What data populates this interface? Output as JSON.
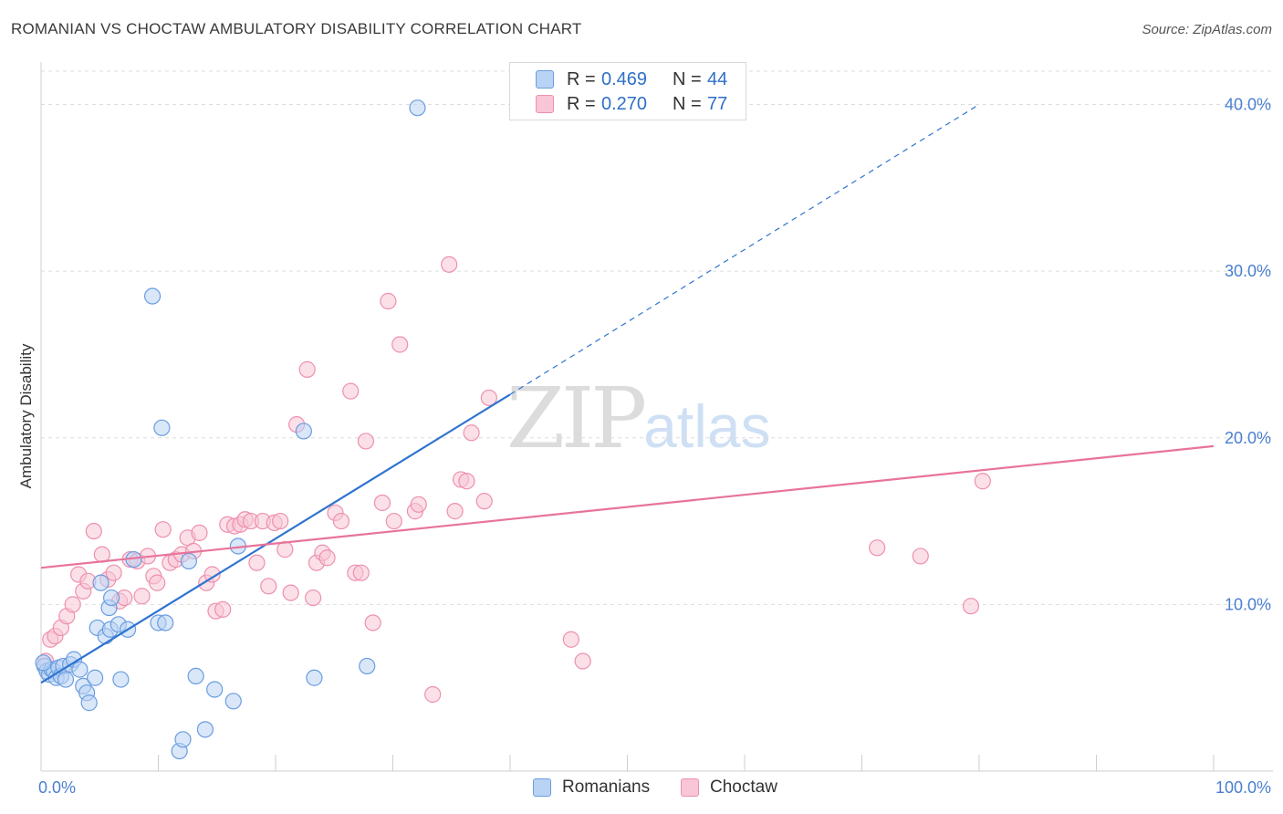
{
  "title": "ROMANIAN VS CHOCTAW AMBULATORY DISABILITY CORRELATION CHART",
  "source": "Source: ZipAtlas.com",
  "watermark": {
    "main": "ZIP",
    "sub": "atlas"
  },
  "legend": {
    "rows": [
      {
        "r_label": "R =",
        "r_value": "0.469",
        "n_label": "N =",
        "n_value": "44"
      },
      {
        "r_label": "R =",
        "r_value": "0.270",
        "n_label": "N =",
        "n_value": "77"
      }
    ]
  },
  "bottom_legend": {
    "series1": "Romanians",
    "series2": "Choctaw"
  },
  "colors": {
    "blue_fill": "#b9d3f4",
    "blue_stroke": "#6a9de0",
    "blue_line": "#2f74d0",
    "pink_fill": "#f8c6d6",
    "pink_stroke": "#ee90ae",
    "pink_line": "#e8739b",
    "grid": "#dddddd",
    "tick": "#4a7fd0"
  },
  "chart_data": {
    "type": "scatter",
    "title": "ROMANIAN VS CHOCTAW AMBULATORY DISABILITY CORRELATION CHART",
    "xlabel": "",
    "ylabel": "Ambulatory Disability",
    "xlim": [
      0,
      100
    ],
    "ylim": [
      0,
      42
    ],
    "x_ticks": [
      "0.0%",
      "100.0%"
    ],
    "y_ticks": [
      {
        "value": 10,
        "label": "10.0%"
      },
      {
        "value": 20,
        "label": "20.0%"
      },
      {
        "value": 30,
        "label": "30.0%"
      },
      {
        "value": 40,
        "label": "40.0%"
      }
    ],
    "grid": true,
    "legend_position": "top-center",
    "series": [
      {
        "name": "Romanians",
        "r": 0.469,
        "n": 44,
        "trend": {
          "x0": 0,
          "y0": 5.3,
          "x1": 40,
          "y1": 22.6,
          "dashed_to_x": 80,
          "dashed_to_y": 40.0
        },
        "points": [
          [
            0.3,
            6.3
          ],
          [
            0.5,
            6.0
          ],
          [
            0.7,
            5.8
          ],
          [
            0.9,
            6.1
          ],
          [
            1.1,
            6.0
          ],
          [
            1.3,
            5.6
          ],
          [
            1.5,
            6.2
          ],
          [
            1.7,
            5.7
          ],
          [
            1.9,
            6.3
          ],
          [
            2.1,
            5.5
          ],
          [
            2.5,
            6.4
          ],
          [
            2.8,
            6.7
          ],
          [
            3.3,
            6.1
          ],
          [
            3.6,
            5.1
          ],
          [
            3.9,
            4.7
          ],
          [
            4.1,
            4.1
          ],
          [
            4.6,
            5.6
          ],
          [
            4.8,
            8.6
          ],
          [
            5.1,
            11.3
          ],
          [
            5.5,
            8.1
          ],
          [
            5.8,
            9.8
          ],
          [
            5.9,
            8.5
          ],
          [
            6.0,
            10.4
          ],
          [
            6.6,
            8.8
          ],
          [
            6.8,
            5.5
          ],
          [
            7.4,
            8.5
          ],
          [
            7.9,
            12.7
          ],
          [
            9.5,
            28.5
          ],
          [
            10.0,
            8.9
          ],
          [
            10.3,
            20.6
          ],
          [
            10.6,
            8.9
          ],
          [
            11.8,
            1.2
          ],
          [
            12.1,
            1.9
          ],
          [
            12.6,
            12.6
          ],
          [
            13.2,
            5.7
          ],
          [
            14.0,
            2.5
          ],
          [
            14.8,
            4.9
          ],
          [
            16.4,
            4.2
          ],
          [
            16.8,
            13.5
          ],
          [
            22.4,
            20.4
          ],
          [
            23.3,
            5.6
          ],
          [
            27.8,
            6.3
          ],
          [
            32.1,
            39.8
          ],
          [
            0.2,
            6.5
          ]
        ]
      },
      {
        "name": "Choctaw",
        "r": 0.27,
        "n": 77,
        "trend": {
          "x0": 0,
          "y0": 12.2,
          "x1": 100,
          "y1": 19.5
        },
        "points": [
          [
            0.4,
            6.6
          ],
          [
            0.8,
            7.9
          ],
          [
            1.2,
            8.1
          ],
          [
            1.7,
            8.6
          ],
          [
            2.2,
            9.3
          ],
          [
            2.7,
            10.0
          ],
          [
            3.2,
            11.8
          ],
          [
            3.6,
            10.8
          ],
          [
            4.0,
            11.4
          ],
          [
            4.5,
            14.4
          ],
          [
            5.2,
            13.0
          ],
          [
            5.7,
            11.5
          ],
          [
            6.2,
            11.9
          ],
          [
            6.7,
            10.2
          ],
          [
            7.1,
            10.4
          ],
          [
            7.6,
            12.7
          ],
          [
            8.2,
            12.6
          ],
          [
            8.6,
            10.5
          ],
          [
            9.1,
            12.9
          ],
          [
            9.6,
            11.7
          ],
          [
            9.9,
            11.3
          ],
          [
            10.4,
            14.5
          ],
          [
            11.0,
            12.5
          ],
          [
            11.5,
            12.7
          ],
          [
            12.0,
            13.0
          ],
          [
            12.5,
            14.0
          ],
          [
            13.0,
            13.2
          ],
          [
            13.5,
            14.3
          ],
          [
            14.1,
            11.3
          ],
          [
            14.6,
            11.8
          ],
          [
            14.9,
            9.6
          ],
          [
            15.5,
            9.7
          ],
          [
            15.9,
            14.8
          ],
          [
            16.5,
            14.7
          ],
          [
            17.0,
            14.8
          ],
          [
            17.4,
            15.1
          ],
          [
            17.9,
            15.0
          ],
          [
            18.4,
            12.5
          ],
          [
            18.9,
            15.0
          ],
          [
            19.4,
            11.1
          ],
          [
            19.9,
            14.9
          ],
          [
            20.4,
            15.0
          ],
          [
            20.8,
            13.3
          ],
          [
            21.3,
            10.7
          ],
          [
            21.8,
            20.8
          ],
          [
            22.7,
            24.1
          ],
          [
            23.2,
            10.4
          ],
          [
            23.5,
            12.5
          ],
          [
            24.0,
            13.1
          ],
          [
            24.4,
            12.8
          ],
          [
            25.1,
            15.5
          ],
          [
            25.6,
            15.0
          ],
          [
            26.4,
            22.8
          ],
          [
            26.8,
            11.9
          ],
          [
            27.3,
            11.9
          ],
          [
            27.7,
            19.8
          ],
          [
            28.3,
            8.9
          ],
          [
            29.1,
            16.1
          ],
          [
            29.6,
            28.2
          ],
          [
            30.1,
            15.0
          ],
          [
            30.6,
            25.6
          ],
          [
            31.9,
            15.6
          ],
          [
            32.2,
            16.0
          ],
          [
            33.4,
            4.6
          ],
          [
            34.8,
            30.4
          ],
          [
            35.3,
            15.6
          ],
          [
            35.8,
            17.5
          ],
          [
            36.3,
            17.4
          ],
          [
            36.7,
            20.3
          ],
          [
            37.8,
            16.2
          ],
          [
            38.2,
            22.4
          ],
          [
            45.2,
            7.9
          ],
          [
            46.2,
            6.6
          ],
          [
            71.3,
            13.4
          ],
          [
            75.0,
            12.9
          ],
          [
            79.3,
            9.9
          ],
          [
            80.3,
            17.4
          ]
        ]
      }
    ]
  }
}
